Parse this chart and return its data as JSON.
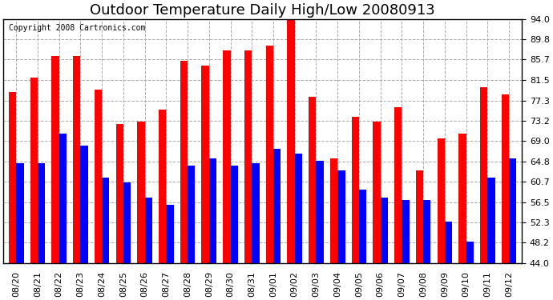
{
  "title": "Outdoor Temperature Daily High/Low 20080913",
  "copyright": "Copyright 2008 Cartronics.com",
  "dates": [
    "08/20",
    "08/21",
    "08/22",
    "08/23",
    "08/24",
    "08/25",
    "08/26",
    "08/27",
    "08/28",
    "08/29",
    "08/30",
    "08/31",
    "09/01",
    "09/02",
    "09/03",
    "09/04",
    "09/05",
    "09/06",
    "09/07",
    "09/08",
    "09/09",
    "09/10",
    "09/11",
    "09/12"
  ],
  "highs": [
    79.0,
    82.0,
    86.5,
    86.5,
    79.5,
    72.5,
    73.0,
    75.5,
    85.5,
    84.5,
    87.5,
    87.5,
    88.5,
    94.5,
    78.0,
    65.5,
    74.0,
    73.0,
    76.0,
    63.0,
    69.5,
    70.5,
    80.0,
    78.5
  ],
  "lows": [
    64.5,
    64.5,
    70.5,
    68.0,
    61.5,
    60.5,
    57.5,
    56.0,
    64.0,
    65.5,
    64.0,
    64.5,
    67.5,
    66.5,
    65.0,
    63.0,
    59.0,
    57.5,
    57.0,
    57.0,
    52.5,
    48.5,
    61.5,
    65.5
  ],
  "high_color": "#ff0000",
  "low_color": "#0000ff",
  "bg_color": "#ffffff",
  "grid_color": "#aaaaaa",
  "yticks": [
    44.0,
    48.2,
    52.3,
    56.5,
    60.7,
    64.8,
    69.0,
    73.2,
    77.3,
    81.5,
    85.7,
    89.8,
    94.0
  ],
  "ymin": 44.0,
  "ymax": 94.0,
  "bar_width": 0.35,
  "title_fontsize": 13,
  "tick_fontsize": 8,
  "copyright_fontsize": 7
}
